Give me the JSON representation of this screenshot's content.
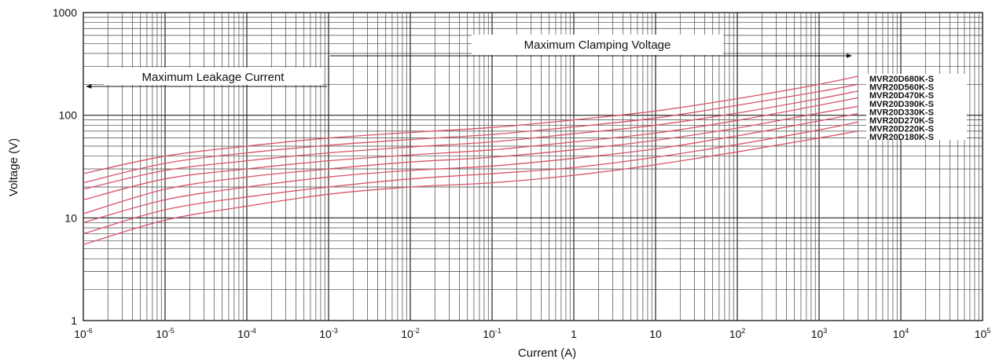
{
  "chart_data": {
    "type": "line",
    "xlabel": "Current (A)",
    "ylabel": "Voltage (V)",
    "x_scale": "log",
    "y_scale": "log",
    "xlim": [
      1e-06,
      100000
    ],
    "ylim": [
      1,
      1000
    ],
    "x_tick_labels": [
      {
        "base": "10",
        "exp": "-6"
      },
      {
        "base": "10",
        "exp": "-5"
      },
      {
        "base": "10",
        "exp": "-4"
      },
      {
        "base": "10",
        "exp": "-3"
      },
      {
        "base": "10",
        "exp": "-2"
      },
      {
        "base": "10",
        "exp": "-1"
      },
      {
        "base": "1",
        "exp": ""
      },
      {
        "base": "10",
        "exp": ""
      },
      {
        "base": "10",
        "exp": "2"
      },
      {
        "base": "10",
        "exp": "3"
      },
      {
        "base": "10",
        "exp": "4"
      },
      {
        "base": "10",
        "exp": "5"
      }
    ],
    "y_tick_labels": [
      "1",
      "10",
      "100",
      "1000"
    ],
    "grid": true,
    "annotations": [
      {
        "text": "Maximum Leakage Current",
        "x_range": [
          1e-06,
          0.001
        ],
        "direction": "left"
      },
      {
        "text": "Maximum Clamping Voltage",
        "x_range": [
          0.001,
          2500
        ],
        "direction": "right"
      }
    ],
    "line_color": "#d9536b",
    "series": [
      {
        "name": "MVR20D680K-S",
        "x": [
          1e-06,
          1e-05,
          0.0001,
          0.001,
          0.01,
          0.1,
          1,
          10,
          100,
          1000,
          3000
        ],
        "y": [
          27,
          40,
          50,
          60,
          68,
          76,
          90,
          110,
          145,
          200,
          240
        ]
      },
      {
        "name": "MVR20D560K-S",
        "x": [
          1e-06,
          1e-05,
          0.0001,
          0.001,
          0.01,
          0.1,
          1,
          10,
          100,
          1000,
          3000
        ],
        "y": [
          22,
          34,
          43,
          51,
          58,
          65,
          77,
          94,
          125,
          170,
          200
        ]
      },
      {
        "name": "MVR20D470K-S",
        "x": [
          1e-06,
          1e-05,
          0.0001,
          0.001,
          0.01,
          0.1,
          1,
          10,
          100,
          1000,
          3000
        ],
        "y": [
          19,
          29,
          36,
          43,
          49,
          55,
          66,
          80,
          105,
          145,
          172
        ]
      },
      {
        "name": "MVR20D390K-S",
        "x": [
          1e-06,
          1e-05,
          0.0001,
          0.001,
          0.01,
          0.1,
          1,
          10,
          100,
          1000,
          3000
        ],
        "y": [
          15,
          24,
          30,
          36,
          41,
          46,
          55,
          67,
          89,
          125,
          148
        ]
      },
      {
        "name": "MVR20D330K-S",
        "x": [
          1e-06,
          1e-05,
          0.0001,
          0.001,
          0.01,
          0.1,
          1,
          10,
          100,
          1000,
          3000
        ],
        "y": [
          11,
          19,
          25,
          30,
          35,
          39,
          46,
          57,
          75,
          105,
          122
        ]
      },
      {
        "name": "MVR20D270K-S",
        "x": [
          1e-06,
          1e-05,
          0.0001,
          0.001,
          0.01,
          0.1,
          1,
          10,
          100,
          1000,
          3000
        ],
        "y": [
          9,
          15,
          20,
          25,
          29,
          32,
          38,
          47,
          63,
          88,
          104
        ]
      },
      {
        "name": "MVR20D220K-S",
        "x": [
          1e-06,
          1e-05,
          0.0001,
          0.001,
          0.01,
          0.1,
          1,
          10,
          100,
          1000,
          3000
        ],
        "y": [
          7,
          12,
          16,
          20,
          24,
          27,
          31,
          39,
          52,
          72,
          86
        ]
      },
      {
        "name": "MVR20D180K-S",
        "x": [
          1e-06,
          1e-05,
          0.0001,
          0.001,
          0.01,
          0.1,
          1,
          10,
          100,
          1000,
          3000
        ],
        "y": [
          5.5,
          9.5,
          13,
          17,
          20,
          22,
          26,
          33,
          44,
          60,
          70
        ]
      }
    ]
  }
}
